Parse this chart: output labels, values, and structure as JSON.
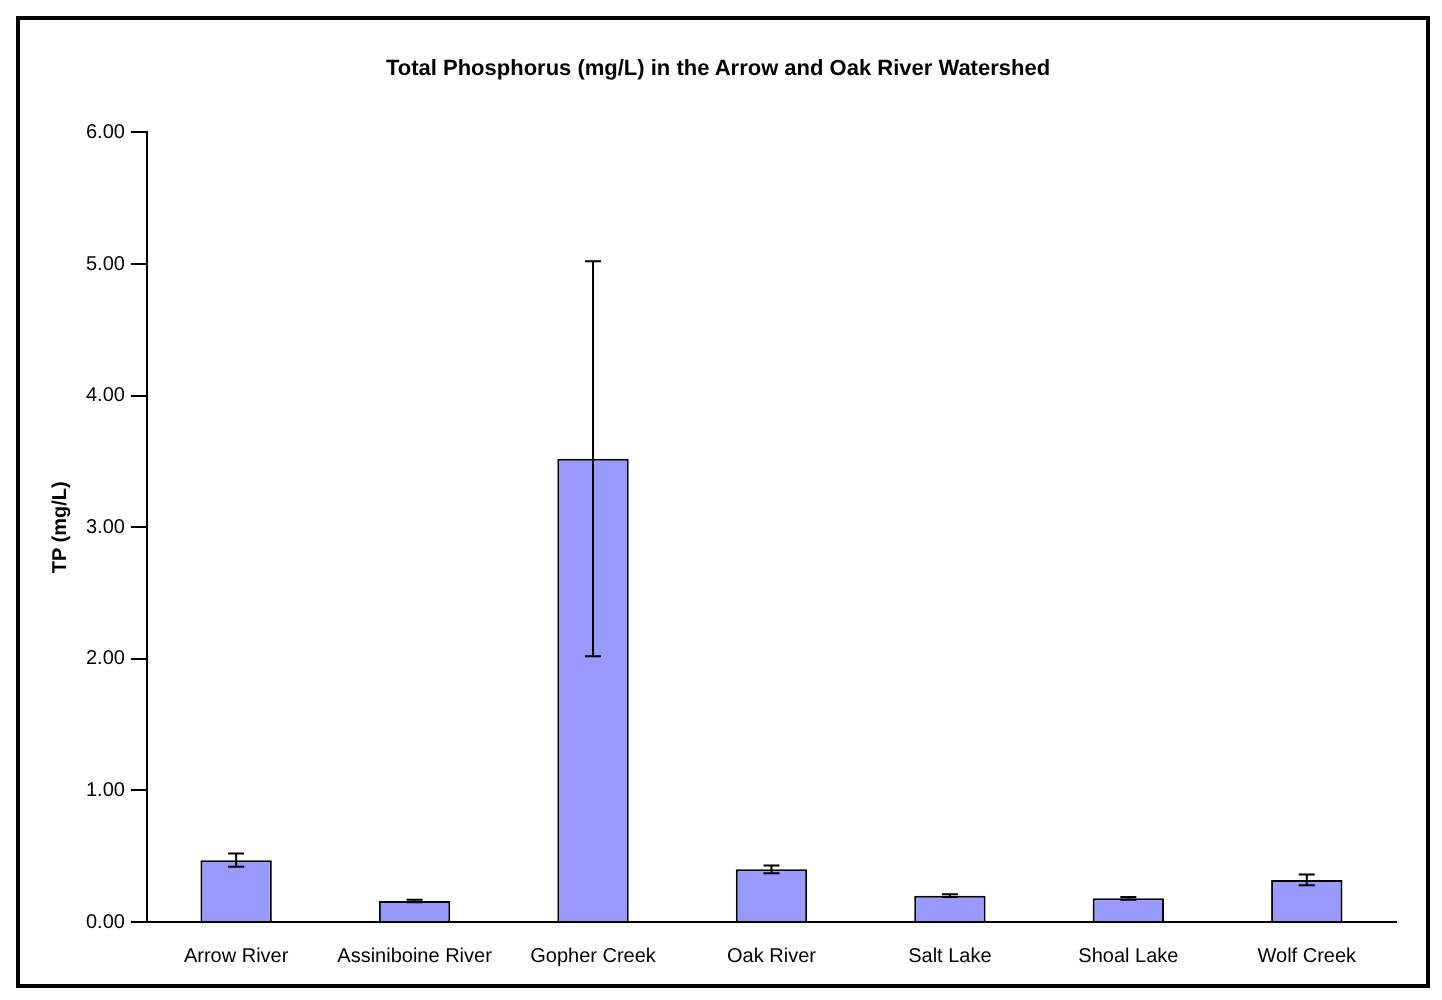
{
  "chart_data": {
    "type": "bar",
    "title": "Total Phosphorus (mg/L) in the Arrow and Oak River Watershed",
    "ylabel": "TP (mg/L)",
    "categories": [
      "Arrow River",
      "Assiniboine River",
      "Gopher Creek",
      "Oak River",
      "Salt Lake",
      "Shoal Lake",
      "Wolf Creek"
    ],
    "values": [
      0.47,
      0.16,
      3.52,
      0.4,
      0.2,
      0.18,
      0.32
    ],
    "errors": [
      0.05,
      0.01,
      1.5,
      0.03,
      0.01,
      0.01,
      0.04
    ],
    "color": "#9999ff",
    "ylim": [
      0,
      6
    ],
    "yticks": [
      {
        "value": 0,
        "label": "0.00"
      },
      {
        "value": 1,
        "label": "1.00"
      },
      {
        "value": 2,
        "label": "2.00"
      },
      {
        "value": 3,
        "label": "3.00"
      },
      {
        "value": 4,
        "label": "4.00"
      },
      {
        "value": 5,
        "label": "5.00"
      },
      {
        "value": 6,
        "label": "6.00"
      }
    ],
    "grid": false,
    "legend": false
  }
}
